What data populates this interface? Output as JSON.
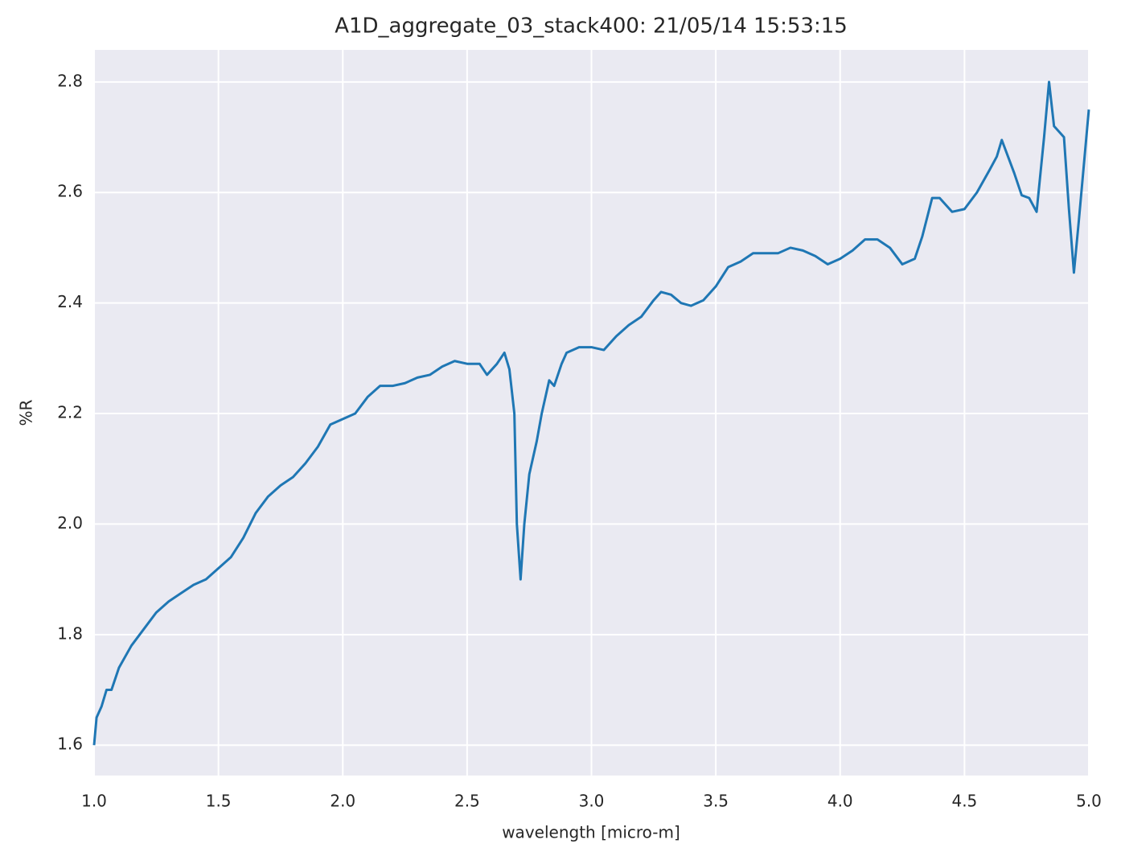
{
  "chart_data": {
    "type": "line",
    "title": "A1D_aggregate_03_stack400:  21/05/14 15:53:15",
    "x_label": "wavelength [micro-m]",
    "y_label": "%R",
    "x": [
      1.0,
      1.01,
      1.03,
      1.05,
      1.07,
      1.1,
      1.15,
      1.2,
      1.25,
      1.3,
      1.35,
      1.4,
      1.45,
      1.5,
      1.55,
      1.6,
      1.65,
      1.7,
      1.75,
      1.8,
      1.85,
      1.9,
      1.95,
      2.0,
      2.05,
      2.1,
      2.15,
      2.2,
      2.25,
      2.3,
      2.35,
      2.4,
      2.45,
      2.5,
      2.55,
      2.58,
      2.62,
      2.65,
      2.67,
      2.69,
      2.7,
      2.715,
      2.73,
      2.75,
      2.78,
      2.8,
      2.83,
      2.85,
      2.88,
      2.9,
      2.95,
      3.0,
      3.05,
      3.1,
      3.15,
      3.2,
      3.25,
      3.28,
      3.32,
      3.36,
      3.4,
      3.45,
      3.5,
      3.55,
      3.6,
      3.65,
      3.7,
      3.75,
      3.8,
      3.85,
      3.9,
      3.95,
      4.0,
      4.05,
      4.1,
      4.15,
      4.2,
      4.25,
      4.3,
      4.33,
      4.37,
      4.4,
      4.45,
      4.5,
      4.55,
      4.6,
      4.63,
      4.65,
      4.7,
      4.73,
      4.76,
      4.79,
      4.82,
      4.84,
      4.86,
      4.88,
      4.9,
      4.92,
      4.94,
      4.96,
      4.98,
      5.0
    ],
    "series": [
      {
        "name": "%R",
        "color": "#1f77b4",
        "values": [
          1.6,
          1.65,
          1.67,
          1.7,
          1.7,
          1.74,
          1.78,
          1.81,
          1.84,
          1.86,
          1.875,
          1.89,
          1.9,
          1.92,
          1.94,
          1.975,
          2.02,
          2.05,
          2.07,
          2.085,
          2.11,
          2.14,
          2.18,
          2.19,
          2.2,
          2.23,
          2.25,
          2.25,
          2.255,
          2.265,
          2.27,
          2.285,
          2.295,
          2.29,
          2.29,
          2.27,
          2.29,
          2.31,
          2.28,
          2.2,
          2.0,
          1.9,
          2.0,
          2.09,
          2.15,
          2.2,
          2.26,
          2.25,
          2.29,
          2.31,
          2.32,
          2.32,
          2.315,
          2.34,
          2.36,
          2.375,
          2.405,
          2.42,
          2.415,
          2.4,
          2.395,
          2.405,
          2.43,
          2.465,
          2.475,
          2.49,
          2.49,
          2.49,
          2.5,
          2.495,
          2.485,
          2.47,
          2.48,
          2.495,
          2.515,
          2.515,
          2.5,
          2.47,
          2.48,
          2.52,
          2.59,
          2.59,
          2.565,
          2.57,
          2.6,
          2.64,
          2.665,
          2.695,
          2.635,
          2.595,
          2.59,
          2.565,
          2.7,
          2.8,
          2.72,
          2.71,
          2.7,
          2.57,
          2.455,
          2.55,
          2.65,
          2.75
        ]
      }
    ],
    "xlim": [
      1.0,
      5.0
    ],
    "ylim": [
      1.545,
      2.858
    ],
    "xticks": [
      {
        "value": 1.0,
        "label": "1.0"
      },
      {
        "value": 1.5,
        "label": "1.5"
      },
      {
        "value": 2.0,
        "label": "2.0"
      },
      {
        "value": 2.5,
        "label": "2.5"
      },
      {
        "value": 3.0,
        "label": "3.0"
      },
      {
        "value": 3.5,
        "label": "3.5"
      },
      {
        "value": 4.0,
        "label": "4.0"
      },
      {
        "value": 4.5,
        "label": "4.5"
      },
      {
        "value": 5.0,
        "label": "5.0"
      }
    ],
    "yticks": [
      1.6,
      1.8,
      {
        "value": 2.0,
        "label": "2.0"
      },
      2.2,
      2.4,
      2.6,
      2.8
    ],
    "grid": true
  }
}
